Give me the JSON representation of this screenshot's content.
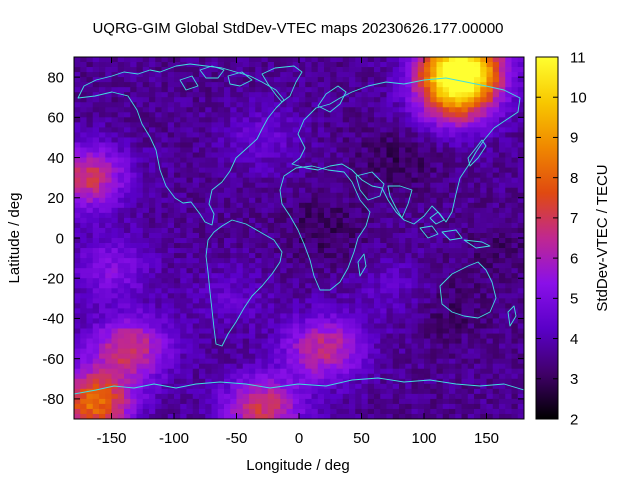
{
  "chart_data": {
    "type": "heatmap",
    "title": "UQRG-GIM Global StdDev-VTEC maps 20230626.177.00000",
    "xlabel": "Longitude / deg",
    "ylabel": "Latitude / deg",
    "colorbar_label": "StdDev-VTEC / TECU",
    "xlim": [
      -180,
      180
    ],
    "ylim": [
      -90,
      90
    ],
    "zlim": [
      2,
      11
    ],
    "x_ticks": [
      -150,
      -100,
      -50,
      0,
      50,
      100,
      150
    ],
    "y_ticks": [
      -80,
      -60,
      -40,
      -20,
      0,
      20,
      40,
      60,
      80
    ],
    "z_ticks": [
      2,
      3,
      4,
      5,
      6,
      7,
      8,
      9,
      10,
      11
    ],
    "grid_step": {
      "lon": 5,
      "lat": 2.5
    },
    "colormap": [
      "#000000",
      "#400068",
      "#5a00c8",
      "#8a10e8",
      "#c02890",
      "#e04a10",
      "#f08800",
      "#f8c800",
      "#ffff30"
    ],
    "coastline_color": "#40e0e0",
    "regions": [
      {
        "name": "background",
        "value": 3.6
      },
      {
        "name": "north-pole-peak",
        "lon": 130,
        "lat": 85,
        "value": 10.8
      },
      {
        "name": "north-arc",
        "lon": 125,
        "lat": 70,
        "value": 7.5
      },
      {
        "name": "west-pacific-north",
        "lon": -170,
        "lat": 30,
        "value": 7.0
      },
      {
        "name": "east-pacific-mid",
        "lon": -150,
        "lat": -15,
        "value": 5.2
      },
      {
        "name": "south-pacific",
        "lon": -135,
        "lat": -55,
        "value": 6.8
      },
      {
        "name": "south-atlantic",
        "lon": 20,
        "lat": -55,
        "value": 6.6
      },
      {
        "name": "south-pole-west",
        "lon": -165,
        "lat": -82,
        "value": 8.2
      },
      {
        "name": "south-pole-mid",
        "lon": -30,
        "lat": -85,
        "value": 7.0
      },
      {
        "name": "north-atlantic",
        "lon": -30,
        "lat": 50,
        "value": 4.6
      },
      {
        "name": "south-america-band",
        "lon": -55,
        "lat": -30,
        "value": 4.4
      },
      {
        "name": "africa-east",
        "lon": 75,
        "lat": -25,
        "value": 4.3
      },
      {
        "name": "indian-ocean-south",
        "lon": 120,
        "lat": -35,
        "value": 3.1
      },
      {
        "name": "asia-dark",
        "lon": 80,
        "lat": 40,
        "value": 3.0
      },
      {
        "name": "africa-dark",
        "lon": 20,
        "lat": 5,
        "value": 3.0
      },
      {
        "name": "pacific-dark",
        "lon": 160,
        "lat": -5,
        "value": 3.2
      }
    ]
  }
}
